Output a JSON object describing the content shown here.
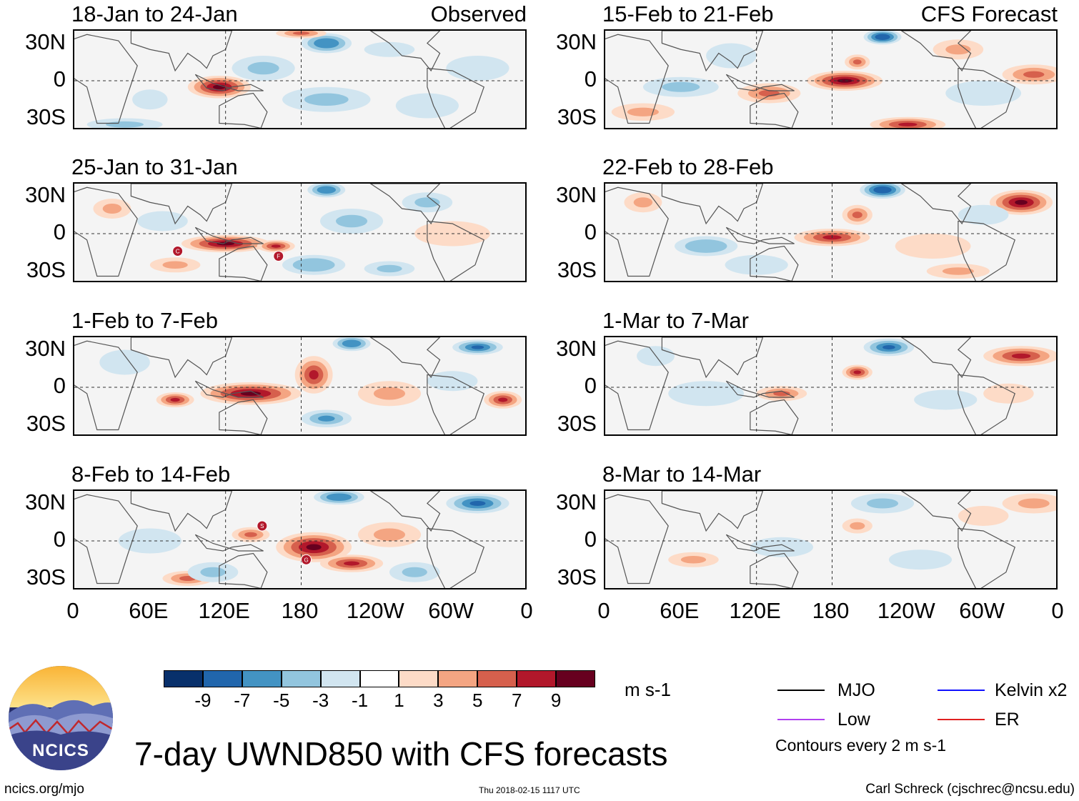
{
  "chart_data": {
    "type": "heatmap",
    "title": "7-day UWND850 with CFS forecasts",
    "variable": "850-hPa zonal wind anomaly",
    "units": "m s-1",
    "x_ticks": [
      "0",
      "60E",
      "120E",
      "180",
      "120W",
      "60W",
      "0"
    ],
    "y_ticks": [
      "30N",
      "0",
      "30S"
    ],
    "lon_range": [
      0,
      360
    ],
    "lat_range": [
      -40,
      40
    ],
    "colorbar": {
      "labels": [
        "-9",
        "-7",
        "-5",
        "-3",
        "-1",
        "1",
        "3",
        "5",
        "7",
        "9"
      ],
      "levels": [
        -9,
        -7,
        -5,
        -3,
        -1,
        1,
        3,
        5,
        7,
        9
      ],
      "colors": [
        "#08306b",
        "#2166ac",
        "#4393c3",
        "#92c5de",
        "#d1e5f0",
        "#ffffff",
        "#fddbc7",
        "#f4a582",
        "#d6604d",
        "#b2182b",
        "#67001f"
      ]
    },
    "panels": [
      {
        "column": "observed",
        "label": "18-Jan to 24-Jan",
        "tag": "Observed",
        "storms": []
      },
      {
        "column": "observed",
        "label": "25-Jan to 31-Jan",
        "tag": "",
        "storms": [
          {
            "name": "C",
            "lon": 82,
            "lat": -14
          },
          {
            "name": "F",
            "lon": 162,
            "lat": -18
          }
        ]
      },
      {
        "column": "observed",
        "label": "1-Feb to 7-Feb",
        "tag": "",
        "storms": []
      },
      {
        "column": "observed",
        "label": "8-Feb to 14-Feb",
        "tag": "",
        "storms": [
          {
            "name": "S",
            "lon": 149,
            "lat": 12
          },
          {
            "name": "G",
            "lon": 184,
            "lat": -15
          }
        ]
      },
      {
        "column": "forecast",
        "label": "15-Feb to 21-Feb",
        "tag": "CFS Forecast",
        "storms": []
      },
      {
        "column": "forecast",
        "label": "22-Feb to 28-Feb",
        "tag": "",
        "storms": []
      },
      {
        "column": "forecast",
        "label": "1-Mar to 7-Mar",
        "tag": "",
        "storms": []
      },
      {
        "column": "forecast",
        "label": "8-Mar to 14-Mar",
        "tag": "",
        "storms": []
      }
    ],
    "anomaly_blobs": [
      [
        [
          115,
          -5,
          25,
          9,
          9
        ],
        [
          60,
          -15,
          14,
          8,
          -3
        ],
        [
          150,
          10,
          25,
          10,
          -4
        ],
        [
          200,
          30,
          20,
          8,
          -7
        ],
        [
          200,
          -15,
          35,
          10,
          -4
        ],
        [
          280,
          -20,
          25,
          10,
          -3
        ],
        [
          320,
          10,
          25,
          10,
          -2
        ],
        [
          180,
          38,
          20,
          4,
          6
        ],
        [
          250,
          25,
          20,
          6,
          -3
        ],
        [
          40,
          -35,
          30,
          5,
          -4
        ]
      ],
      [
        [
          120,
          -8,
          35,
          7,
          10
        ],
        [
          160,
          -10,
          15,
          5,
          8
        ],
        [
          80,
          -25,
          20,
          6,
          3
        ],
        [
          200,
          35,
          15,
          6,
          -7
        ],
        [
          220,
          10,
          25,
          10,
          -4
        ],
        [
          190,
          -25,
          25,
          8,
          -5
        ],
        [
          280,
          25,
          20,
          8,
          -4
        ],
        [
          300,
          0,
          30,
          10,
          2
        ],
        [
          30,
          20,
          15,
          8,
          3
        ],
        [
          250,
          -28,
          20,
          6,
          -4
        ],
        [
          70,
          10,
          20,
          8,
          -3
        ]
      ],
      [
        [
          140,
          -5,
          40,
          9,
          10
        ],
        [
          190,
          10,
          15,
          15,
          8
        ],
        [
          80,
          -10,
          15,
          6,
          8
        ],
        [
          340,
          -10,
          15,
          7,
          8
        ],
        [
          220,
          35,
          15,
          6,
          -7
        ],
        [
          320,
          32,
          20,
          6,
          -8
        ],
        [
          200,
          -25,
          20,
          7,
          -6
        ],
        [
          40,
          20,
          20,
          10,
          -3
        ],
        [
          250,
          -5,
          25,
          10,
          3
        ],
        [
          300,
          5,
          20,
          8,
          -3
        ]
      ],
      [
        [
          190,
          -5,
          30,
          12,
          10
        ],
        [
          220,
          -18,
          25,
          7,
          8
        ],
        [
          140,
          5,
          15,
          6,
          5
        ],
        [
          210,
          35,
          20,
          6,
          -7
        ],
        [
          320,
          30,
          25,
          8,
          -8
        ],
        [
          90,
          -30,
          20,
          6,
          6
        ],
        [
          110,
          -25,
          20,
          8,
          -4
        ],
        [
          60,
          0,
          25,
          10,
          -3
        ],
        [
          250,
          5,
          25,
          10,
          3
        ],
        [
          270,
          -25,
          20,
          8,
          -4
        ]
      ],
      [
        [
          190,
          0,
          30,
          8,
          10
        ],
        [
          200,
          15,
          10,
          6,
          6
        ],
        [
          220,
          35,
          15,
          6,
          -9
        ],
        [
          240,
          -35,
          30,
          6,
          8
        ],
        [
          130,
          -10,
          25,
          8,
          5
        ],
        [
          60,
          -5,
          30,
          8,
          -4
        ],
        [
          340,
          5,
          25,
          8,
          5
        ],
        [
          300,
          -10,
          30,
          10,
          -2
        ],
        [
          280,
          25,
          20,
          8,
          3
        ],
        [
          100,
          20,
          20,
          10,
          -3
        ],
        [
          30,
          -25,
          25,
          7,
          3
        ]
      ],
      [
        [
          180,
          -3,
          30,
          7,
          8
        ],
        [
          200,
          15,
          12,
          8,
          6
        ],
        [
          220,
          35,
          18,
          7,
          -9
        ],
        [
          330,
          25,
          25,
          10,
          9
        ],
        [
          80,
          -10,
          25,
          8,
          -5
        ],
        [
          30,
          25,
          15,
          8,
          4
        ],
        [
          120,
          -25,
          25,
          8,
          -3
        ],
        [
          260,
          -10,
          30,
          10,
          2
        ],
        [
          300,
          15,
          20,
          8,
          -2
        ],
        [
          280,
          -30,
          25,
          6,
          3
        ]
      ],
      [
        [
          200,
          12,
          12,
          6,
          7
        ],
        [
          225,
          32,
          20,
          7,
          -8
        ],
        [
          330,
          25,
          30,
          8,
          8
        ],
        [
          140,
          -5,
          20,
          6,
          5
        ],
        [
          80,
          -5,
          30,
          10,
          -3
        ],
        [
          270,
          -10,
          25,
          8,
          -3
        ],
        [
          320,
          -5,
          20,
          8,
          2
        ],
        [
          40,
          25,
          15,
          8,
          -2
        ]
      ],
      [
        [
          200,
          12,
          12,
          6,
          4
        ],
        [
          220,
          30,
          25,
          8,
          -4
        ],
        [
          340,
          30,
          25,
          8,
          4
        ],
        [
          70,
          -15,
          20,
          6,
          3
        ],
        [
          140,
          -5,
          25,
          8,
          -2
        ],
        [
          250,
          -15,
          25,
          8,
          -2
        ],
        [
          300,
          20,
          20,
          8,
          2
        ]
      ]
    ]
  },
  "legend": {
    "units": "m s-1",
    "items": [
      {
        "label": "MJO",
        "color": "#000000"
      },
      {
        "label": "Kelvin x2",
        "color": "#1010ff"
      },
      {
        "label": "Low",
        "color": "#b040f0"
      },
      {
        "label": "ER",
        "color": "#e02020"
      }
    ],
    "contour_note": "Contours every 2 m s-1"
  },
  "logo": {
    "text": "NCICS"
  },
  "footer": {
    "left": "ncics.org/mjo",
    "middle": "Thu 2018-02-15 1117 UTC",
    "right": "Carl Schreck (cjschrec@ncsu.edu)"
  }
}
